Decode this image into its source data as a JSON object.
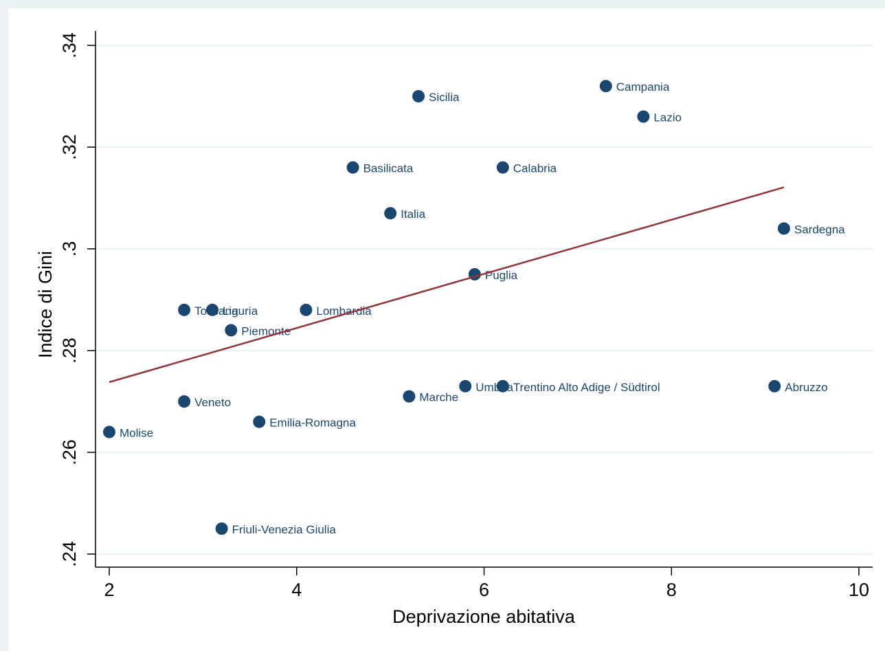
{
  "chart_data": {
    "type": "scatter",
    "title": "",
    "xlabel": "Deprivazione abitativa",
    "ylabel": "Indice di Gini",
    "xlim": [
      2,
      10
    ],
    "ylim": [
      0.24,
      0.34
    ],
    "x_ticks": [
      {
        "value": 2,
        "label": "2"
      },
      {
        "value": 4,
        "label": "4"
      },
      {
        "value": 6,
        "label": "6"
      },
      {
        "value": 8,
        "label": "8"
      },
      {
        "value": 10,
        "label": "10"
      }
    ],
    "y_ticks": [
      {
        "value": 0.24,
        "label": ".24"
      },
      {
        "value": 0.26,
        "label": ".26"
      },
      {
        "value": 0.28,
        "label": ".28"
      },
      {
        "value": 0.3,
        "label": ".3"
      },
      {
        "value": 0.32,
        "label": ".32"
      },
      {
        "value": 0.34,
        "label": ".34"
      }
    ],
    "grid": "horizontal",
    "marker_color": "#1a476f",
    "fit_line_color": "#90353b",
    "background_color": "#eaf2f3",
    "plot_background_color": "#ffffff",
    "points": [
      {
        "label": "Campania",
        "x": 7.3,
        "y": 0.332
      },
      {
        "label": "Sicilia",
        "x": 5.3,
        "y": 0.33
      },
      {
        "label": "Lazio",
        "x": 7.7,
        "y": 0.326
      },
      {
        "label": "Basilicata",
        "x": 4.6,
        "y": 0.316
      },
      {
        "label": "Calabria",
        "x": 6.2,
        "y": 0.316
      },
      {
        "label": "Italia",
        "x": 5.0,
        "y": 0.307
      },
      {
        "label": "Sardegna",
        "x": 9.2,
        "y": 0.304
      },
      {
        "label": "Puglia",
        "x": 5.9,
        "y": 0.295
      },
      {
        "label": "Toscana",
        "x": 2.8,
        "y": 0.288
      },
      {
        "label": "Liguria",
        "x": 3.1,
        "y": 0.288
      },
      {
        "label": "Lombardia",
        "x": 4.1,
        "y": 0.288
      },
      {
        "label": "Piemonte",
        "x": 3.3,
        "y": 0.284
      },
      {
        "label": "Umbria",
        "x": 5.8,
        "y": 0.273
      },
      {
        "label": "Trentino Alto Adige / Südtirol",
        "x": 6.2,
        "y": 0.273
      },
      {
        "label": "Abruzzo",
        "x": 9.1,
        "y": 0.273
      },
      {
        "label": "Marche",
        "x": 5.2,
        "y": 0.271
      },
      {
        "label": "Veneto",
        "x": 2.8,
        "y": 0.27
      },
      {
        "label": "Emilia-Romagna",
        "x": 3.6,
        "y": 0.266
      },
      {
        "label": "Molise",
        "x": 2.0,
        "y": 0.264
      },
      {
        "label": "Friuli-Venezia Giulia",
        "x": 3.2,
        "y": 0.245
      }
    ],
    "fit_line": {
      "x": [
        2.0,
        9.2
      ],
      "y": [
        0.2738,
        0.3121
      ]
    }
  }
}
